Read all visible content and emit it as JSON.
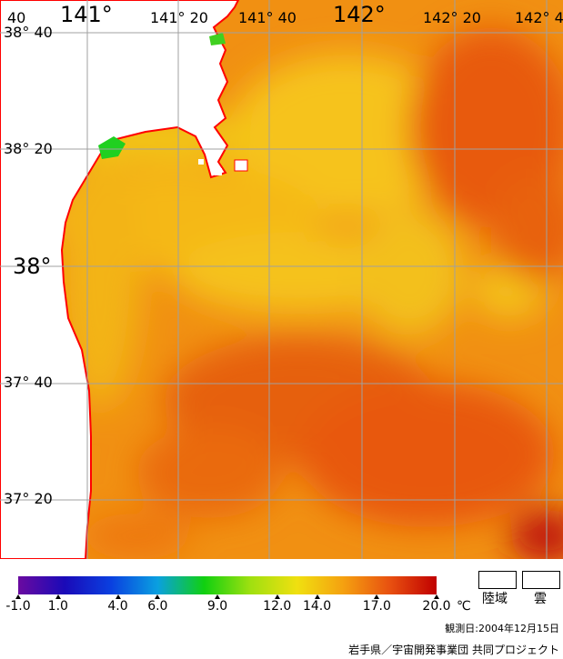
{
  "map": {
    "lon_labels": [
      {
        "text": "141°",
        "big": true
      },
      {
        "text": "141° 20",
        "big": false
      },
      {
        "text": "141° 40",
        "big": false
      },
      {
        "text": "142°",
        "big": true
      },
      {
        "text": "142° 20",
        "big": false
      },
      {
        "text": "142° 4",
        "big": false
      }
    ],
    "lat_labels": [
      {
        "text": "38° 40",
        "big": false
      },
      {
        "text": "38° 20",
        "big": false
      },
      {
        "text": "38°",
        "big": true
      },
      {
        "text": "37° 40",
        "big": false
      },
      {
        "text": "37° 20",
        "big": false
      }
    ],
    "corner_fragment": "40",
    "colors": {
      "land": "#ffffff",
      "coast": "#ff0000",
      "grid": "#a0a0a0",
      "sea_warm": "#f08a10",
      "sea_hot": "#e24a0c",
      "sea_cool": "#f5c218"
    }
  },
  "colorbar": {
    "unit": "℃",
    "ticks": [
      "-1.0",
      "1.0",
      "4.0",
      "6.0",
      "9.0",
      "12.0",
      "14.0",
      "17.0",
      "20.0"
    ],
    "tick_values": [
      -1,
      1,
      4,
      6,
      9,
      12,
      14,
      17,
      20
    ],
    "min": -1,
    "max": 20,
    "stops": [
      "#6a0aa0",
      "#1a0ab8",
      "#0a40e0",
      "#0aa0e0",
      "#10d010",
      "#a0e010",
      "#f0e010",
      "#f5a010",
      "#e85010",
      "#c00000"
    ]
  },
  "legend": {
    "land_label": "陸域",
    "cloud_label": "雲"
  },
  "observation_date": "観測日:2004年12月15日",
  "credit": "岩手県／宇宙開発事業団  共同プロジェクト"
}
